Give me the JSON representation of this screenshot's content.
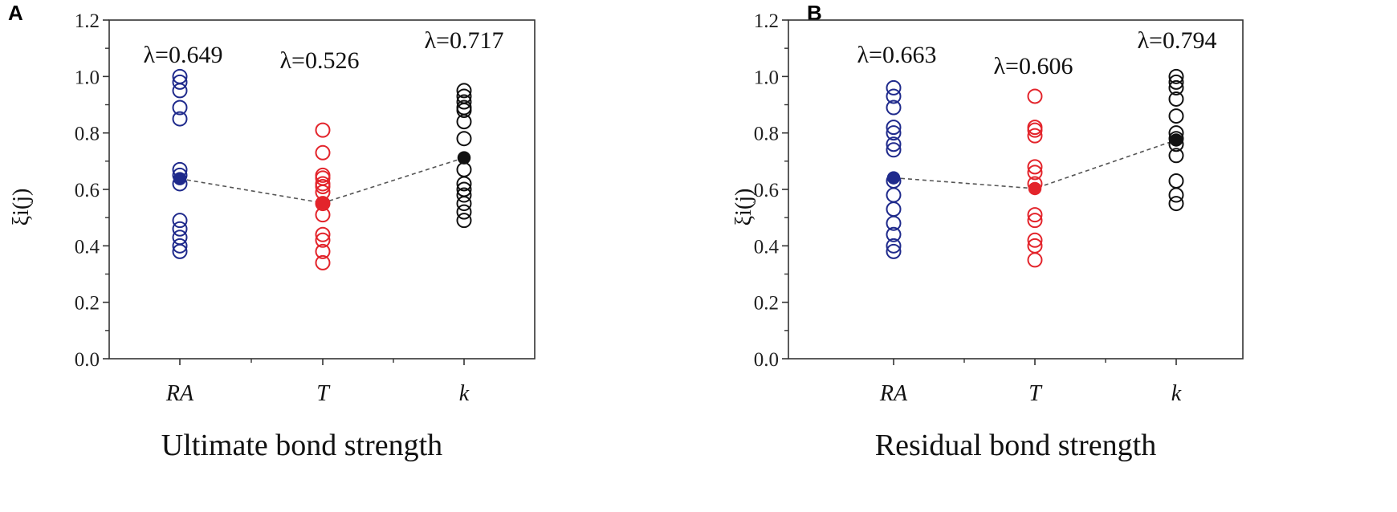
{
  "chart_data": [
    {
      "panel": "A",
      "type": "scatter",
      "title": "Ultimate bond strength",
      "ylabel": "ξi(j)",
      "ylim": [
        0,
        1.2
      ],
      "yticks": [
        "0.0",
        "0.2",
        "0.4",
        "0.6",
        "0.8",
        "1.0",
        "1.2"
      ],
      "categories": [
        "RA",
        "T",
        "k"
      ],
      "lambda_labels": [
        "λ=0.649",
        "λ=0.526",
        "λ=0.717"
      ],
      "colors": [
        "#1f2a8c",
        "#e3242b",
        "#111111"
      ],
      "series": [
        {
          "category": "RA",
          "points": [
            1.0,
            0.98,
            0.95,
            0.89,
            0.85,
            0.67,
            0.65,
            0.62,
            0.49,
            0.46,
            0.43,
            0.4,
            0.38
          ],
          "mean": 0.638
        },
        {
          "category": "T",
          "points": [
            0.81,
            0.73,
            0.65,
            0.64,
            0.62,
            0.61,
            0.59,
            0.55,
            0.51,
            0.44,
            0.42,
            0.38,
            0.34
          ],
          "mean": 0.552
        },
        {
          "category": "k",
          "points": [
            0.95,
            0.93,
            0.91,
            0.89,
            0.88,
            0.84,
            0.78,
            0.67,
            0.62,
            0.6,
            0.58,
            0.55,
            0.52,
            0.49
          ],
          "mean": 0.712
        }
      ]
    },
    {
      "panel": "B",
      "type": "scatter",
      "title": "Residual bond strength",
      "ylabel": "ξi(j)",
      "ylim": [
        0,
        1.2
      ],
      "yticks": [
        "0.0",
        "0.2",
        "0.4",
        "0.6",
        "0.8",
        "1.0",
        "1.2"
      ],
      "categories": [
        "RA",
        "T",
        "k"
      ],
      "lambda_labels": [
        "λ=0.663",
        "λ=0.606",
        "λ=0.794"
      ],
      "colors": [
        "#1f2a8c",
        "#e3242b",
        "#111111"
      ],
      "series": [
        {
          "category": "RA",
          "points": [
            0.96,
            0.93,
            0.89,
            0.82,
            0.8,
            0.76,
            0.74,
            0.63,
            0.58,
            0.53,
            0.48,
            0.44,
            0.4,
            0.38
          ],
          "mean": 0.641
        },
        {
          "category": "T",
          "points": [
            0.93,
            0.82,
            0.81,
            0.79,
            0.68,
            0.66,
            0.62,
            0.51,
            0.49,
            0.42,
            0.4,
            0.35
          ],
          "mean": 0.603
        },
        {
          "category": "k",
          "points": [
            1.0,
            0.98,
            0.96,
            0.92,
            0.86,
            0.8,
            0.78,
            0.76,
            0.72,
            0.63,
            0.58,
            0.55
          ],
          "mean": 0.775
        }
      ]
    }
  ]
}
